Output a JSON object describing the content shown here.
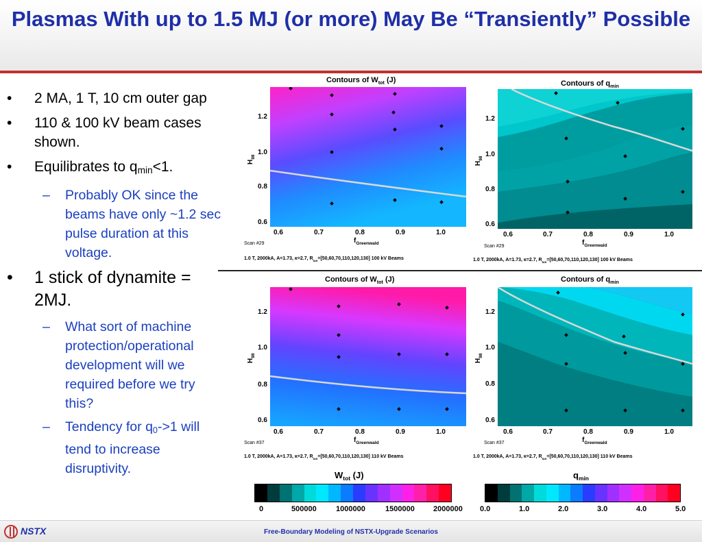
{
  "slide": {
    "title": "Plasmas With up to 1.5 MJ (or more) May Be “Transiently” Possible"
  },
  "bullets": {
    "b1": "2 MA, 1 T, 10 cm outer gap",
    "b2": "110 & 100 kV beam cases shown.",
    "b3_pre": "Equilibrates to q",
    "b3_sub": "min",
    "b3_post": "<1.",
    "b3_sub1": "Probably OK since the beams have only ~1.2 sec pulse duration at this voltage.",
    "b4": "1 stick of dynamite = 2MJ.",
    "b4_sub1": "What sort of machine protection/operational development will we required before we try this?",
    "b4_sub2_pre": "Tendency for q",
    "b4_sub2_sub": "0",
    "b4_sub2_post": "->1 will tend to increase disruptivity.",
    "dot": "•",
    "dash": "–"
  },
  "panels": {
    "wtot_title_pre": "Contours of W",
    "wtot_title_sub": "tot",
    "wtot_title_post": " (J)",
    "qmin_title_pre": "Contours of q",
    "qmin_title_sub": "min",
    "ylabel": "H",
    "ylabel_sub": "98",
    "xlabel": "f",
    "xlabel_sub": "Greenwald",
    "xticks": [
      "0.6",
      "0.7",
      "0.8",
      "0.9",
      "1.0"
    ],
    "yticks": [
      "1.2",
      "1.0",
      "0.8",
      "0.6"
    ],
    "scan_top": "Scan #29",
    "scan_bottom": "Scan #37",
    "caption_top_pre": "1.0 T, 2000kA, A=1.73, κ=2.7, R",
    "caption_sub": "tan",
    "caption_top_post": "=[50,60,70,110,120,130] 100 kV Beams",
    "caption_bottom_post": "=[50,60,70,110,120,130] 110 kV Beams"
  },
  "colorbars": {
    "wtot": {
      "title_pre": "W",
      "title_sub": "tot",
      "title_post": " (J)",
      "ticks": [
        "0",
        "500000",
        "1000000",
        "1500000",
        "2000000"
      ]
    },
    "qmin": {
      "title_pre": "q",
      "title_sub": "min",
      "ticks": [
        "0.0",
        "1.0",
        "2.0",
        "3.0",
        "4.0",
        "5.0"
      ]
    },
    "colors": [
      "#000000",
      "#003c3c",
      "#007272",
      "#00a8a8",
      "#00dada",
      "#00e8ff",
      "#00b8ff",
      "#0a7cff",
      "#2a3cff",
      "#6a32ff",
      "#a030ff",
      "#d030ff",
      "#ff20e8",
      "#ff20a8",
      "#ff1060",
      "#ff0020"
    ]
  },
  "footer": {
    "logo_text": "NSTX",
    "text": "Free-Boundary Modeling of NSTX-Upgrade Scenarios"
  }
}
